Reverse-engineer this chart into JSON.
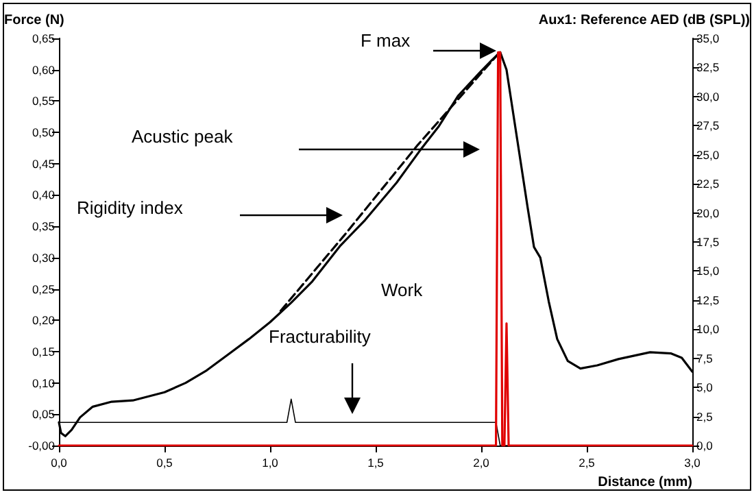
{
  "chart_data": {
    "type": "line",
    "xlabel": "Distance (mm)",
    "ylabel": "Force (N)",
    "y2label": "Aux1: Reference AED (dB (SPL))",
    "xlim": [
      0,
      3
    ],
    "ylim": [
      0,
      0.65
    ],
    "y2lim": [
      0,
      35
    ],
    "xticks": [
      {
        "value": 0,
        "label": "0,0"
      },
      {
        "value": 0.5,
        "label": "0,5"
      },
      {
        "value": 1,
        "label": "1,0"
      },
      {
        "value": 1.5,
        "label": "1,5"
      },
      {
        "value": 2,
        "label": "2,0"
      },
      {
        "value": 2.5,
        "label": "2,5"
      },
      {
        "value": 3,
        "label": "3,0"
      }
    ],
    "yticks": [
      {
        "value": 0,
        "label": "-0,00"
      },
      {
        "value": 0.05,
        "label": "0,05"
      },
      {
        "value": 0.1,
        "label": "0,10"
      },
      {
        "value": 0.15,
        "label": "0,15"
      },
      {
        "value": 0.2,
        "label": "0,20"
      },
      {
        "value": 0.25,
        "label": "0,25"
      },
      {
        "value": 0.3,
        "label": "0,30"
      },
      {
        "value": 0.35,
        "label": "0,35"
      },
      {
        "value": 0.4,
        "label": "0,40"
      },
      {
        "value": 0.45,
        "label": "0,45"
      },
      {
        "value": 0.5,
        "label": "0,50"
      },
      {
        "value": 0.55,
        "label": "0,55"
      },
      {
        "value": 0.6,
        "label": "0,60"
      },
      {
        "value": 0.65,
        "label": "0,65"
      }
    ],
    "y2ticks": [
      {
        "value": 0,
        "label": "0,0"
      },
      {
        "value": 2.5,
        "label": "2,5"
      },
      {
        "value": 5,
        "label": "5,0"
      },
      {
        "value": 7.5,
        "label": "7,5"
      },
      {
        "value": 10,
        "label": "10,0"
      },
      {
        "value": 12.5,
        "label": "12,5"
      },
      {
        "value": 15,
        "label": "15,0"
      },
      {
        "value": 17.5,
        "label": "17,5"
      },
      {
        "value": 20,
        "label": "20,0"
      },
      {
        "value": 22.5,
        "label": "22,5"
      },
      {
        "value": 25,
        "label": "25,0"
      },
      {
        "value": 27.5,
        "label": "27,5"
      },
      {
        "value": 30,
        "label": "30,0"
      },
      {
        "value": 32.5,
        "label": "32,5"
      },
      {
        "value": 35,
        "label": "35,0"
      }
    ],
    "grid": false,
    "marker": "none",
    "annotations": [
      "F max",
      "Acustic peak",
      "Rigidity index",
      "Work",
      "Fracturability"
    ],
    "series": [
      {
        "color": "#000000",
        "line_style": "solid",
        "x": [
          0,
          0.01,
          0.03,
          0.06,
          0.1,
          0.16,
          0.25,
          0.35,
          0.5,
          0.6,
          0.7,
          0.8,
          0.9,
          1.0,
          1.1,
          1.2,
          1.33,
          1.45,
          1.6,
          1.71,
          1.8,
          1.89,
          2.0,
          2.05,
          2.09,
          2.12,
          2.17,
          2.22,
          2.25,
          2.28,
          2.32,
          2.36,
          2.41,
          2.47,
          2.55,
          2.65,
          2.8,
          2.9,
          2.95,
          3.0
        ],
        "values": [
          0.037,
          0.02,
          0.015,
          0.025,
          0.045,
          0.062,
          0.07,
          0.072,
          0.085,
          0.1,
          0.12,
          0.145,
          0.17,
          0.197,
          0.228,
          0.262,
          0.318,
          0.36,
          0.42,
          0.471,
          0.51,
          0.558,
          0.598,
          0.615,
          0.628,
          0.6,
          0.49,
          0.38,
          0.317,
          0.3,
          0.23,
          0.17,
          0.135,
          0.123,
          0.128,
          0.138,
          0.149,
          0.147,
          0.14,
          0.118
        ]
      },
      {
        "color": "#000000",
        "line_style": "dashed",
        "x": [
          1.05,
          1.35,
          1.7,
          2.08
        ],
        "values": [
          0.215,
          0.335,
          0.48,
          0.625
        ]
      },
      {
        "color": "#000000",
        "line_style": "solid",
        "x": [
          0,
          1.08,
          1.1,
          1.12,
          2.07,
          2.09,
          3.0
        ],
        "values": [
          0.037,
          0.037,
          0.074,
          0.037,
          0.037,
          0,
          0
        ]
      },
      {
        "color": "#e00000",
        "line_style": "solid",
        "axis": "y2",
        "x": [
          0,
          2.07,
          2.08,
          2.09,
          2.1,
          2.11,
          2.12,
          2.13,
          3.0
        ],
        "values": [
          0,
          0,
          33.8,
          33.8,
          0,
          0,
          10.5,
          0,
          0
        ]
      }
    ]
  }
}
